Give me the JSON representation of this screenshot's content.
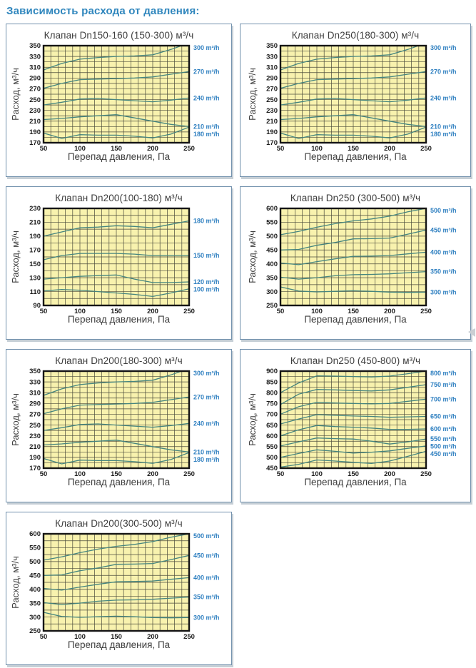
{
  "page_title": "Зависимость расхода от давления:",
  "axis_labels": {
    "x": "Перепад давления, Па",
    "y": "Расход, м³/ч"
  },
  "colors": {
    "page_title_blue": "#2f86bd",
    "panel_border": "#7291ad",
    "plot_bg": "#f8f2ae",
    "grid_line": "#4b4b3c",
    "plot_border": "#151515",
    "curve": "#45857f",
    "series_label_blue": "#2e7fc0",
    "text_dark": "#3d3d3d",
    "tick_text": "#1c1c1c"
  },
  "chart_data": [
    {
      "type": "line",
      "title": "Клапан Dn150-160 (150-300) м³/ч",
      "xlabel": "Перепад давления, Па",
      "ylabel": "Расход, м³/ч",
      "x": [
        50,
        75,
        100,
        125,
        150,
        175,
        200,
        225,
        250
      ],
      "xlim": [
        50,
        250
      ],
      "xtick_step": 50,
      "xgrid_step": 10,
      "ylim": [
        170,
        350
      ],
      "ytick_step": 20,
      "ygrid_step": 10,
      "grid": true,
      "legend_position": "right",
      "series": [
        {
          "name": "300 m³/h",
          "values": [
            305,
            317,
            325,
            328,
            330,
            331,
            333,
            343,
            355
          ]
        },
        {
          "name": "270 m³/h",
          "values": [
            271,
            280,
            287,
            288,
            289,
            290,
            292,
            297,
            302
          ]
        },
        {
          "name": "240 m³/h",
          "values": [
            240,
            245,
            251,
            252,
            250,
            248,
            246,
            249,
            253
          ]
        },
        {
          "name": "210 m³/h",
          "values": [
            213,
            215,
            218,
            220,
            222,
            216,
            210,
            204,
            200
          ]
        },
        {
          "name": "180 m³/h",
          "values": [
            188,
            178,
            185,
            184,
            184,
            182,
            179,
            186,
            199
          ]
        }
      ]
    },
    {
      "type": "line",
      "title": "Клапан Dn250(180-300) м³/ч",
      "xlabel": "Перепад давления, Па",
      "ylabel": "Расход, м³/ч",
      "x": [
        50,
        75,
        100,
        125,
        150,
        175,
        200,
        225,
        250
      ],
      "xlim": [
        50,
        250
      ],
      "xtick_step": 50,
      "xgrid_step": 10,
      "ylim": [
        170,
        350
      ],
      "ytick_step": 20,
      "ygrid_step": 10,
      "grid": true,
      "legend_position": "right",
      "series": [
        {
          "name": "300 m³/h",
          "values": [
            305,
            317,
            325,
            328,
            330,
            331,
            333,
            343,
            355
          ]
        },
        {
          "name": "270 m³/h",
          "values": [
            271,
            280,
            287,
            288,
            289,
            290,
            292,
            297,
            302
          ]
        },
        {
          "name": "240 m³/h",
          "values": [
            240,
            245,
            251,
            252,
            250,
            248,
            246,
            249,
            253
          ]
        },
        {
          "name": "210 m³/h",
          "values": [
            213,
            215,
            218,
            220,
            222,
            216,
            210,
            204,
            200
          ]
        },
        {
          "name": "180 m³/h",
          "values": [
            188,
            178,
            185,
            184,
            184,
            182,
            179,
            186,
            199
          ]
        }
      ]
    },
    {
      "type": "line",
      "title": "Клапан Dn200(100-180) м³/ч",
      "xlabel": "Перепад давления, Па",
      "ylabel": "Расход, м³/ч",
      "x": [
        50,
        75,
        100,
        125,
        150,
        175,
        200,
        225,
        250
      ],
      "xlim": [
        50,
        250
      ],
      "xtick_step": 50,
      "xgrid_step": 10,
      "ylim": [
        90,
        230
      ],
      "ytick_step": 20,
      "ygrid_step": 10,
      "grid": true,
      "legend_position": "right",
      "series": [
        {
          "name": "180 m³/h",
          "values": [
            190,
            196,
            202,
            203,
            205,
            204,
            202,
            207,
            212
          ]
        },
        {
          "name": "150 m³/h",
          "values": [
            156,
            162,
            165,
            165,
            165,
            164,
            162,
            162,
            162
          ]
        },
        {
          "name": "120 m³/h",
          "values": [
            128,
            130,
            132,
            133,
            134,
            128,
            123,
            123,
            124
          ]
        },
        {
          "name": "100 m³/h",
          "values": [
            111,
            113,
            112,
            110,
            108,
            106,
            103,
            108,
            114
          ]
        }
      ]
    },
    {
      "type": "line",
      "title": "Клапан Dn250 (300-500) м³/ч",
      "xlabel": "Перепад давления, Па",
      "ylabel": "Расход, м³/ч",
      "x": [
        50,
        75,
        100,
        125,
        150,
        175,
        200,
        225,
        250
      ],
      "xlim": [
        50,
        250
      ],
      "xtick_step": 50,
      "xgrid_step": 10,
      "ylim": [
        250,
        600
      ],
      "ytick_step": 50,
      "ygrid_step": 25,
      "grid": true,
      "legend_position": "right",
      "series": [
        {
          "name": "500 m³/h",
          "values": [
            505,
            517,
            532,
            545,
            555,
            562,
            572,
            588,
            600
          ]
        },
        {
          "name": "450 m³/h",
          "values": [
            450,
            452,
            467,
            477,
            490,
            491,
            493,
            507,
            522
          ]
        },
        {
          "name": "400 m³/h",
          "values": [
            403,
            397,
            408,
            418,
            427,
            428,
            430,
            436,
            442
          ]
        },
        {
          "name": "350 m³/h",
          "values": [
            352,
            345,
            350,
            357,
            361,
            362,
            364,
            368,
            372
          ]
        },
        {
          "name": "300 m³/h",
          "values": [
            317,
            302,
            299,
            301,
            303,
            301,
            298,
            297,
            298
          ]
        }
      ]
    },
    {
      "type": "line",
      "title": "Клапан Dn200(180-300) м³/ч",
      "xlabel": "Перепад давления, Па",
      "ylabel": "Расход, м³/ч",
      "x": [
        50,
        75,
        100,
        125,
        150,
        175,
        200,
        225,
        250
      ],
      "xlim": [
        50,
        250
      ],
      "xtick_step": 50,
      "xgrid_step": 10,
      "ylim": [
        170,
        350
      ],
      "ytick_step": 20,
      "ygrid_step": 10,
      "grid": true,
      "legend_position": "right",
      "series": [
        {
          "name": "300 m³/h",
          "values": [
            305,
            317,
            325,
            328,
            330,
            331,
            333,
            343,
            355
          ]
        },
        {
          "name": "270 m³/h",
          "values": [
            271,
            280,
            287,
            288,
            289,
            290,
            292,
            297,
            302
          ]
        },
        {
          "name": "240 m³/h",
          "values": [
            240,
            245,
            251,
            252,
            250,
            248,
            246,
            249,
            253
          ]
        },
        {
          "name": "210 m³/h",
          "values": [
            213,
            215,
            218,
            220,
            222,
            216,
            210,
            204,
            200
          ]
        },
        {
          "name": "180 m³/h",
          "values": [
            188,
            178,
            185,
            184,
            184,
            182,
            179,
            186,
            199
          ]
        }
      ]
    },
    {
      "type": "line",
      "title": "Клапан Dn250 (450-800) м³/ч",
      "xlabel": "Перепад давления, Па",
      "ylabel": "Расход, м³/ч",
      "x": [
        50,
        75,
        100,
        125,
        150,
        175,
        200,
        225,
        250
      ],
      "xlim": [
        50,
        250
      ],
      "xtick_step": 50,
      "xgrid_step": 10,
      "ylim": [
        450,
        900
      ],
      "ytick_step": 50,
      "ygrid_step": 25,
      "grid": true,
      "legend_position": "right",
      "series": [
        {
          "name": "800 m³/h",
          "values": [
            800,
            845,
            878,
            877,
            875,
            873,
            877,
            888,
            900
          ]
        },
        {
          "name": "750 m³/h",
          "values": [
            745,
            793,
            815,
            813,
            810,
            808,
            813,
            825,
            837
          ]
        },
        {
          "name": "700 m³/h",
          "values": [
            700,
            735,
            755,
            752,
            750,
            748,
            750,
            760,
            770
          ]
        },
        {
          "name": "650 m³/h",
          "values": [
            655,
            678,
            698,
            695,
            692,
            690,
            686,
            688,
            690
          ]
        },
        {
          "name": "600 m³/h",
          "values": [
            600,
            628,
            648,
            643,
            640,
            636,
            630,
            630,
            632
          ]
        },
        {
          "name": "550 m³/h",
          "values": [
            553,
            572,
            590,
            587,
            585,
            575,
            562,
            572,
            585
          ]
        },
        {
          "name": "500 m³/h",
          "values": [
            500,
            518,
            535,
            528,
            520,
            524,
            530,
            542,
            553
          ]
        },
        {
          "name": "450 m³/h",
          "values": [
            455,
            468,
            488,
            483,
            477,
            472,
            483,
            505,
            528
          ]
        }
      ]
    },
    {
      "type": "line",
      "title": "Клапан Dn200(300-500) м³/ч",
      "xlabel": "Перепад давления, Па",
      "ylabel": "Расход, м³/ч",
      "x": [
        50,
        75,
        100,
        125,
        150,
        175,
        200,
        225,
        250
      ],
      "xlim": [
        50,
        250
      ],
      "xtick_step": 50,
      "xgrid_step": 10,
      "ylim": [
        250,
        600
      ],
      "ytick_step": 50,
      "ygrid_step": 25,
      "grid": true,
      "legend_position": "right",
      "series": [
        {
          "name": "500 m³/h",
          "values": [
            505,
            517,
            532,
            545,
            555,
            562,
            572,
            588,
            600
          ]
        },
        {
          "name": "450 m³/h",
          "values": [
            450,
            452,
            467,
            477,
            490,
            491,
            493,
            507,
            522
          ]
        },
        {
          "name": "400 m³/h",
          "values": [
            403,
            397,
            408,
            418,
            427,
            428,
            430,
            436,
            442
          ]
        },
        {
          "name": "350 m³/h",
          "values": [
            352,
            345,
            350,
            357,
            361,
            362,
            364,
            368,
            372
          ]
        },
        {
          "name": "300 m³/h",
          "values": [
            317,
            302,
            299,
            301,
            303,
            301,
            298,
            297,
            298
          ]
        }
      ]
    }
  ]
}
